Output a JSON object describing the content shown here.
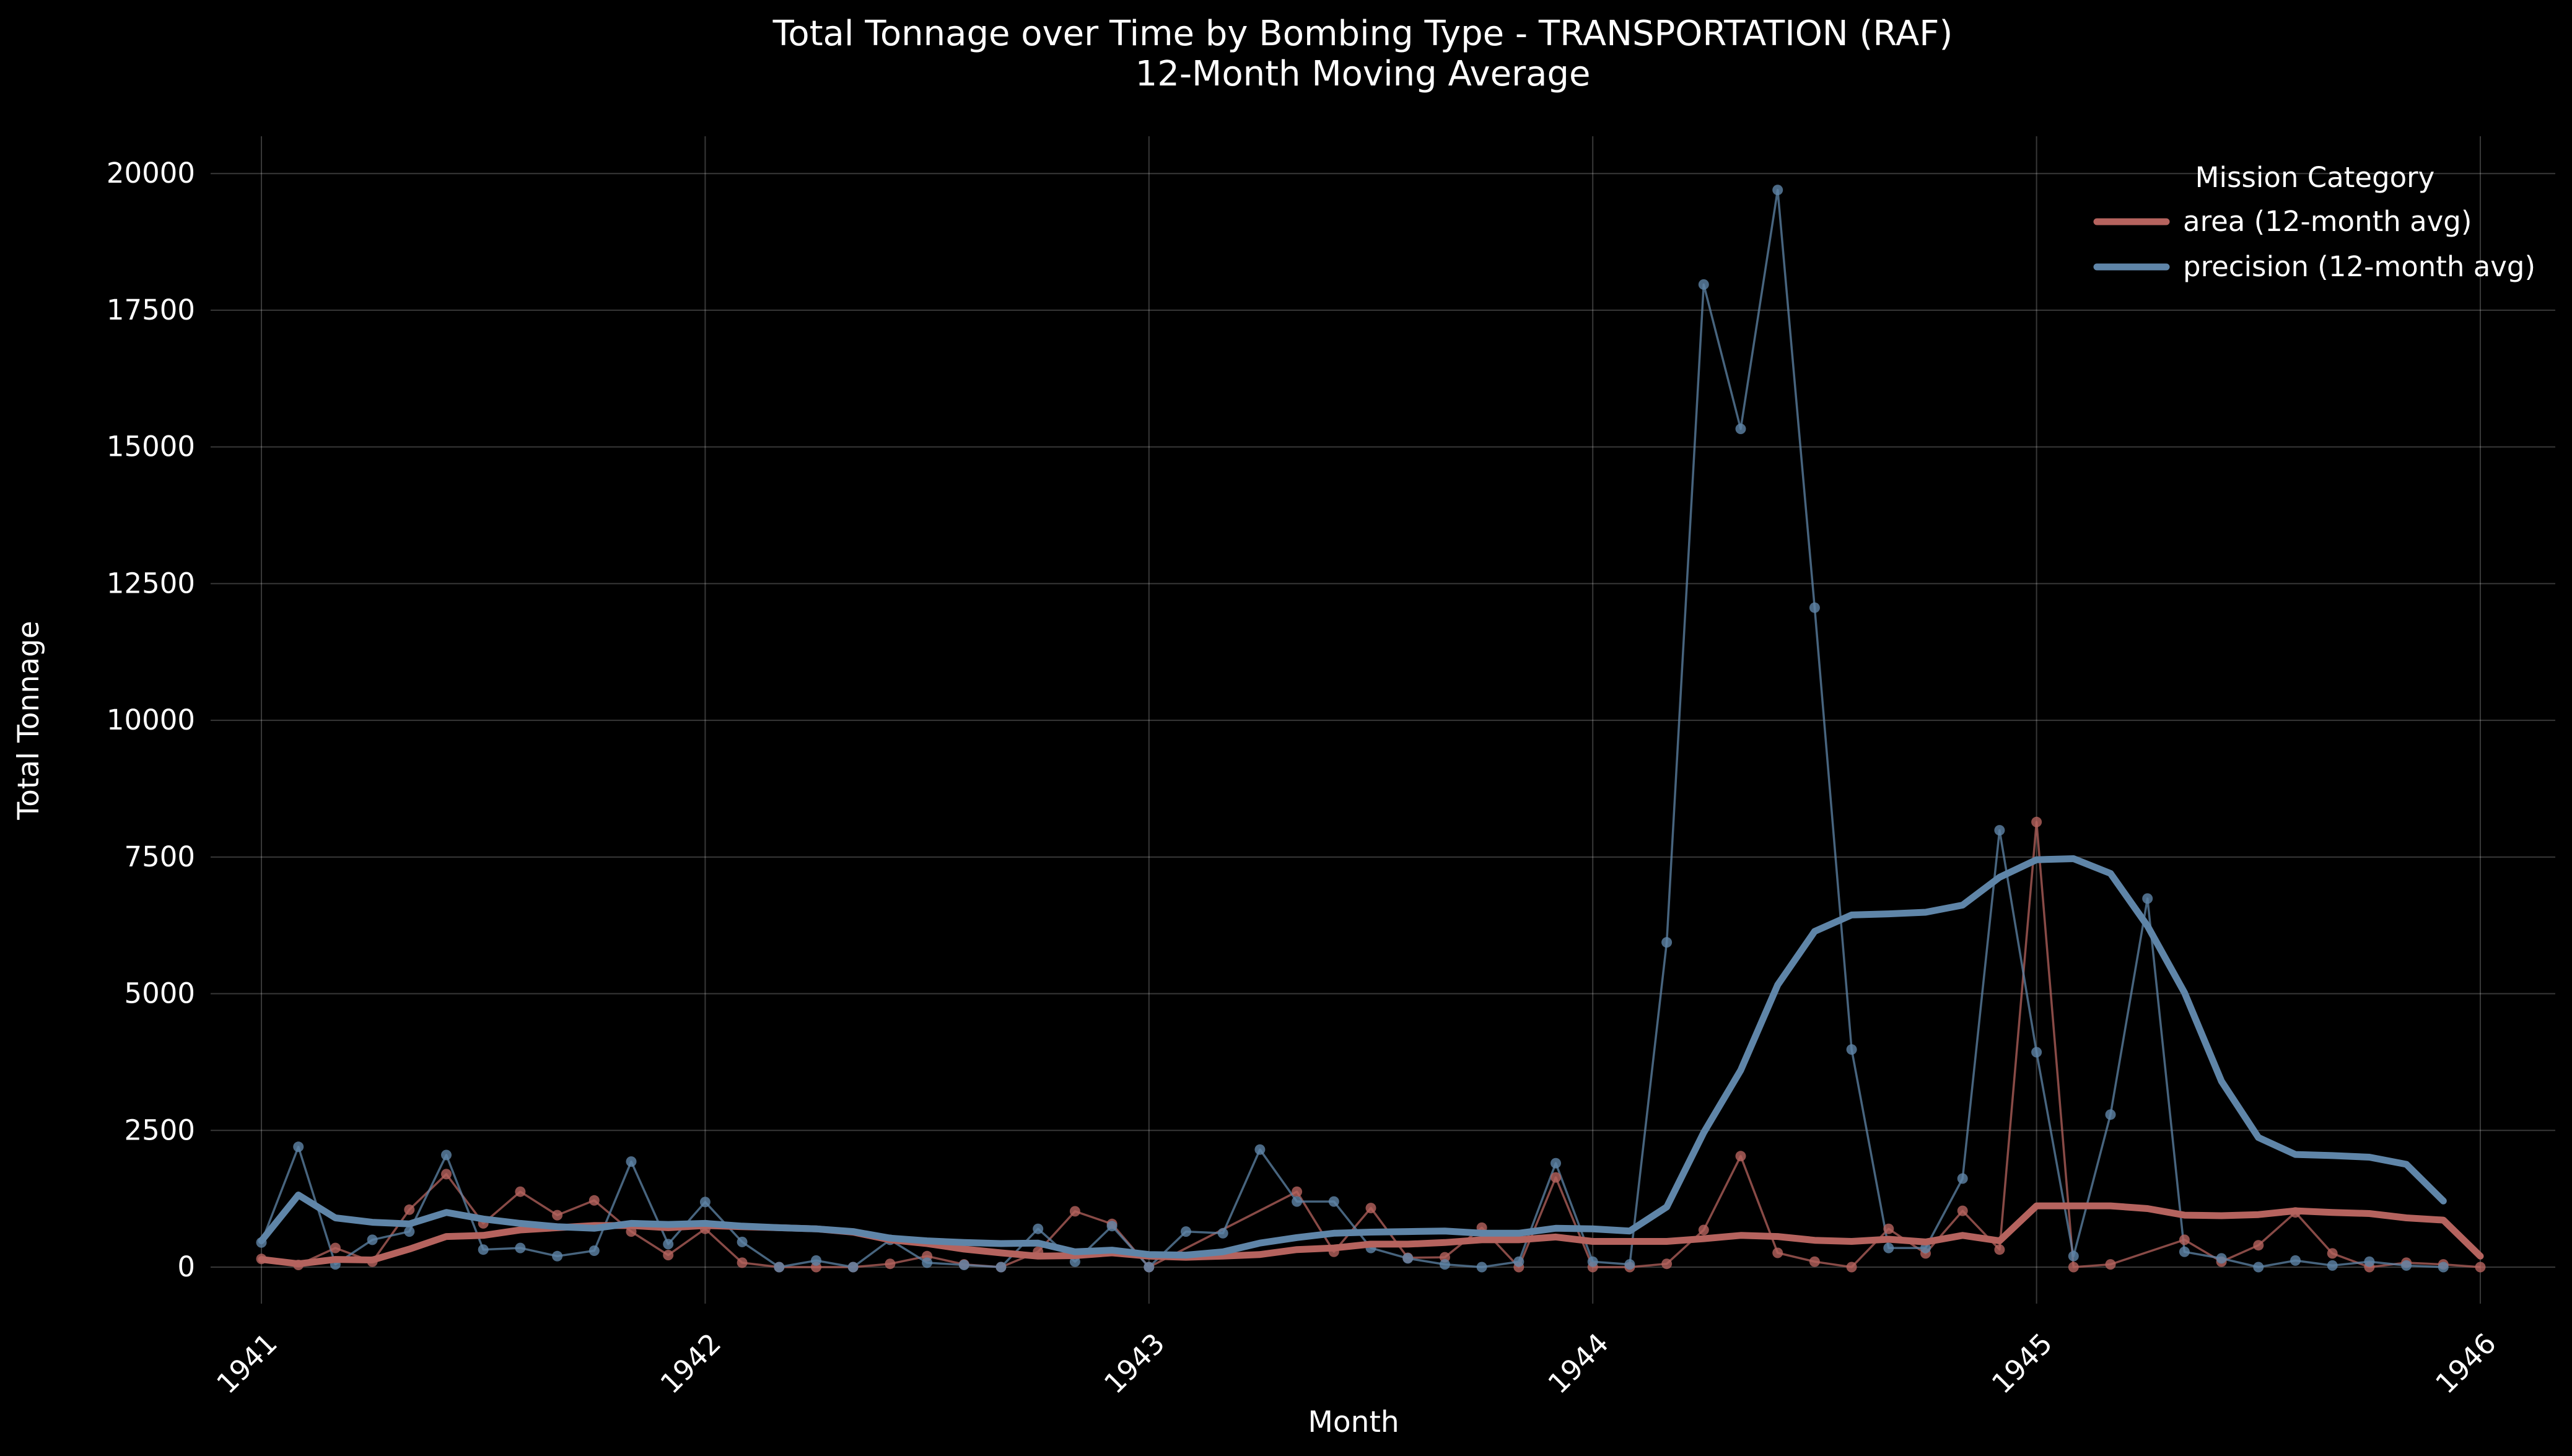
{
  "chart_data": {
    "type": "line",
    "title": "Total Tonnage over Time by Bombing Type - TRANSPORTATION  (RAF)",
    "subtitle": "12-Month Moving Average",
    "xlabel": "Month",
    "ylabel": "Total Tonnage",
    "x_ticks": [
      "1941",
      "1942",
      "1943",
      "1944",
      "1945",
      "1946"
    ],
    "y_ticks": [
      "0",
      "2500",
      "5000",
      "7500",
      "10000",
      "12500",
      "15000",
      "17500",
      "20000"
    ],
    "xlim": [
      "1940-12",
      "1946-03"
    ],
    "ylim": [
      -900,
      20700
    ],
    "grid": true,
    "legend": {
      "title": "Mission Category",
      "position": "top-right"
    },
    "colors": {
      "area": "#b5635e",
      "precision": "#5f85a8",
      "background": "#000000"
    },
    "series": [
      {
        "name": "area (12-month avg)",
        "key": "area",
        "raw": [
          [
            "1941-01",
            150
          ],
          [
            "1941-02",
            40
          ],
          [
            "1941-03",
            350
          ],
          [
            "1941-04",
            100
          ],
          [
            "1941-05",
            1050
          ],
          [
            "1941-06",
            1700
          ],
          [
            "1941-07",
            800
          ],
          [
            "1941-08",
            1380
          ],
          [
            "1941-09",
            950
          ],
          [
            "1941-10",
            1220
          ],
          [
            "1941-11",
            650
          ],
          [
            "1941-12",
            220
          ],
          [
            "1942-01",
            700
          ],
          [
            "1942-02",
            80
          ],
          [
            "1942-03",
            0
          ],
          [
            "1942-04",
            0
          ],
          [
            "1942-05",
            0
          ],
          [
            "1942-06",
            60
          ],
          [
            "1942-07",
            200
          ],
          [
            "1942-08",
            50
          ],
          [
            "1942-09",
            0
          ],
          [
            "1942-10",
            280
          ],
          [
            "1942-11",
            1020
          ],
          [
            "1942-12",
            790
          ],
          [
            "1943-01",
            0
          ],
          [
            "1943-05",
            1380
          ],
          [
            "1943-06",
            280
          ],
          [
            "1943-07",
            1080
          ],
          [
            "1943-08",
            170
          ],
          [
            "1943-09",
            180
          ],
          [
            "1943-10",
            720
          ],
          [
            "1943-11",
            0
          ],
          [
            "1943-12",
            1640
          ],
          [
            "1944-01",
            0
          ],
          [
            "1944-02",
            0
          ],
          [
            "1944-03",
            60
          ],
          [
            "1944-04",
            680
          ],
          [
            "1944-05",
            2030
          ],
          [
            "1944-06",
            260
          ],
          [
            "1944-07",
            100
          ],
          [
            "1944-08",
            0
          ],
          [
            "1944-09",
            700
          ],
          [
            "1944-10",
            250
          ],
          [
            "1944-11",
            1030
          ],
          [
            "1944-12",
            320
          ],
          [
            "1945-01",
            8140
          ],
          [
            "1945-02",
            0
          ],
          [
            "1945-03",
            50
          ],
          [
            "1945-05",
            500
          ],
          [
            "1945-06",
            100
          ],
          [
            "1945-07",
            400
          ],
          [
            "1945-08",
            1000
          ],
          [
            "1945-09",
            250
          ],
          [
            "1945-10",
            0
          ],
          [
            "1945-11",
            80
          ],
          [
            "1945-12",
            50
          ],
          [
            "1946-01",
            0
          ]
        ],
        "avg": [
          [
            "1941-01",
            140
          ],
          [
            "1941-02",
            60
          ],
          [
            "1941-03",
            140
          ],
          [
            "1941-04",
            130
          ],
          [
            "1941-05",
            330
          ],
          [
            "1941-06",
            560
          ],
          [
            "1941-07",
            580
          ],
          [
            "1941-08",
            680
          ],
          [
            "1941-09",
            720
          ],
          [
            "1941-10",
            760
          ],
          [
            "1941-11",
            760
          ],
          [
            "1941-12",
            720
          ],
          [
            "1942-01",
            760
          ],
          [
            "1942-02",
            740
          ],
          [
            "1942-03",
            720
          ],
          [
            "1942-04",
            700
          ],
          [
            "1942-05",
            640
          ],
          [
            "1942-06",
            500
          ],
          [
            "1942-07",
            430
          ],
          [
            "1942-08",
            330
          ],
          [
            "1942-09",
            260
          ],
          [
            "1942-10",
            200
          ],
          [
            "1942-11",
            210
          ],
          [
            "1942-12",
            260
          ],
          [
            "1943-01",
            200
          ],
          [
            "1943-02",
            180
          ],
          [
            "1943-03",
            200
          ],
          [
            "1943-04",
            230
          ],
          [
            "1943-05",
            320
          ],
          [
            "1943-06",
            350
          ],
          [
            "1943-07",
            420
          ],
          [
            "1943-08",
            420
          ],
          [
            "1943-09",
            450
          ],
          [
            "1943-10",
            500
          ],
          [
            "1943-11",
            500
          ],
          [
            "1943-12",
            550
          ],
          [
            "1944-01",
            470
          ],
          [
            "1944-02",
            470
          ],
          [
            "1944-03",
            470
          ],
          [
            "1944-04",
            520
          ],
          [
            "1944-05",
            580
          ],
          [
            "1944-06",
            560
          ],
          [
            "1944-07",
            490
          ],
          [
            "1944-08",
            470
          ],
          [
            "1944-09",
            510
          ],
          [
            "1944-10",
            460
          ],
          [
            "1944-11",
            580
          ],
          [
            "1944-12",
            480
          ],
          [
            "1945-01",
            1120
          ],
          [
            "1945-02",
            1120
          ],
          [
            "1945-03",
            1120
          ],
          [
            "1945-04",
            1070
          ],
          [
            "1945-05",
            950
          ],
          [
            "1945-06",
            940
          ],
          [
            "1945-07",
            960
          ],
          [
            "1945-08",
            1030
          ],
          [
            "1945-09",
            1000
          ],
          [
            "1945-10",
            980
          ],
          [
            "1945-11",
            900
          ],
          [
            "1945-12",
            860
          ],
          [
            "1946-01",
            200
          ]
        ]
      },
      {
        "name": "precision (12-month avg)",
        "key": "precision",
        "raw": [
          [
            "1941-01",
            450
          ],
          [
            "1941-02",
            2200
          ],
          [
            "1941-03",
            50
          ],
          [
            "1941-04",
            500
          ],
          [
            "1941-05",
            650
          ],
          [
            "1941-06",
            2050
          ],
          [
            "1941-07",
            320
          ],
          [
            "1941-08",
            350
          ],
          [
            "1941-09",
            200
          ],
          [
            "1941-10",
            300
          ],
          [
            "1941-11",
            1930
          ],
          [
            "1941-12",
            420
          ],
          [
            "1942-01",
            1190
          ],
          [
            "1942-02",
            460
          ],
          [
            "1942-03",
            0
          ],
          [
            "1942-04",
            120
          ],
          [
            "1942-05",
            0
          ],
          [
            "1942-06",
            500
          ],
          [
            "1942-07",
            80
          ],
          [
            "1942-08",
            40
          ],
          [
            "1942-09",
            0
          ],
          [
            "1942-10",
            700
          ],
          [
            "1942-11",
            100
          ],
          [
            "1942-12",
            750
          ],
          [
            "1943-01",
            0
          ],
          [
            "1943-02",
            650
          ],
          [
            "1943-03",
            620
          ],
          [
            "1943-04",
            2150
          ],
          [
            "1943-05",
            1200
          ],
          [
            "1943-06",
            1200
          ],
          [
            "1943-07",
            350
          ],
          [
            "1943-08",
            160
          ],
          [
            "1943-09",
            50
          ],
          [
            "1943-10",
            0
          ],
          [
            "1943-11",
            100
          ],
          [
            "1943-12",
            1900
          ],
          [
            "1944-01",
            100
          ],
          [
            "1944-02",
            50
          ],
          [
            "1944-03",
            5940
          ],
          [
            "1944-04",
            17970
          ],
          [
            "1944-05",
            15330
          ],
          [
            "1944-06",
            19700
          ],
          [
            "1944-07",
            12060
          ],
          [
            "1944-08",
            3980
          ],
          [
            "1944-09",
            350
          ],
          [
            "1944-10",
            350
          ],
          [
            "1944-11",
            1620
          ],
          [
            "1944-12",
            7990
          ],
          [
            "1945-01",
            3930
          ],
          [
            "1945-02",
            200
          ],
          [
            "1945-03",
            2790
          ],
          [
            "1945-04",
            6740
          ],
          [
            "1945-05",
            280
          ],
          [
            "1945-06",
            160
          ],
          [
            "1945-07",
            0
          ],
          [
            "1945-08",
            120
          ],
          [
            "1945-09",
            30
          ],
          [
            "1945-10",
            100
          ],
          [
            "1945-11",
            30
          ],
          [
            "1945-12",
            0
          ]
        ],
        "avg": [
          [
            "1941-01",
            480
          ],
          [
            "1941-02",
            1320
          ],
          [
            "1941-03",
            900
          ],
          [
            "1941-04",
            820
          ],
          [
            "1941-05",
            790
          ],
          [
            "1941-06",
            1000
          ],
          [
            "1941-07",
            880
          ],
          [
            "1941-08",
            800
          ],
          [
            "1941-09",
            740
          ],
          [
            "1941-10",
            710
          ],
          [
            "1941-11",
            800
          ],
          [
            "1941-12",
            780
          ],
          [
            "1942-01",
            800
          ],
          [
            "1942-02",
            750
          ],
          [
            "1942-03",
            720
          ],
          [
            "1942-04",
            700
          ],
          [
            "1942-05",
            650
          ],
          [
            "1942-06",
            530
          ],
          [
            "1942-07",
            480
          ],
          [
            "1942-08",
            450
          ],
          [
            "1942-09",
            430
          ],
          [
            "1942-10",
            440
          ],
          [
            "1942-11",
            280
          ],
          [
            "1942-12",
            310
          ],
          [
            "1943-01",
            230
          ],
          [
            "1943-02",
            220
          ],
          [
            "1943-03",
            280
          ],
          [
            "1943-04",
            440
          ],
          [
            "1943-05",
            540
          ],
          [
            "1943-06",
            620
          ],
          [
            "1943-07",
            640
          ],
          [
            "1943-08",
            650
          ],
          [
            "1943-09",
            660
          ],
          [
            "1943-10",
            620
          ],
          [
            "1943-11",
            620
          ],
          [
            "1943-12",
            710
          ],
          [
            "1944-01",
            700
          ],
          [
            "1944-02",
            660
          ],
          [
            "1944-03",
            1100
          ],
          [
            "1944-04",
            2460
          ],
          [
            "1944-05",
            3600
          ],
          [
            "1944-06",
            5160
          ],
          [
            "1944-07",
            6140
          ],
          [
            "1944-08",
            6440
          ],
          [
            "1944-09",
            6460
          ],
          [
            "1944-10",
            6490
          ],
          [
            "1944-11",
            6620
          ],
          [
            "1944-12",
            7130
          ],
          [
            "1945-01",
            7450
          ],
          [
            "1945-02",
            7470
          ],
          [
            "1945-03",
            7200
          ],
          [
            "1945-04",
            6240
          ],
          [
            "1945-05",
            5020
          ],
          [
            "1945-06",
            3400
          ],
          [
            "1945-07",
            2370
          ],
          [
            "1945-08",
            2060
          ],
          [
            "1945-09",
            2040
          ],
          [
            "1945-10",
            2010
          ],
          [
            "1945-11",
            1880
          ],
          [
            "1945-12",
            1210
          ]
        ]
      }
    ]
  }
}
